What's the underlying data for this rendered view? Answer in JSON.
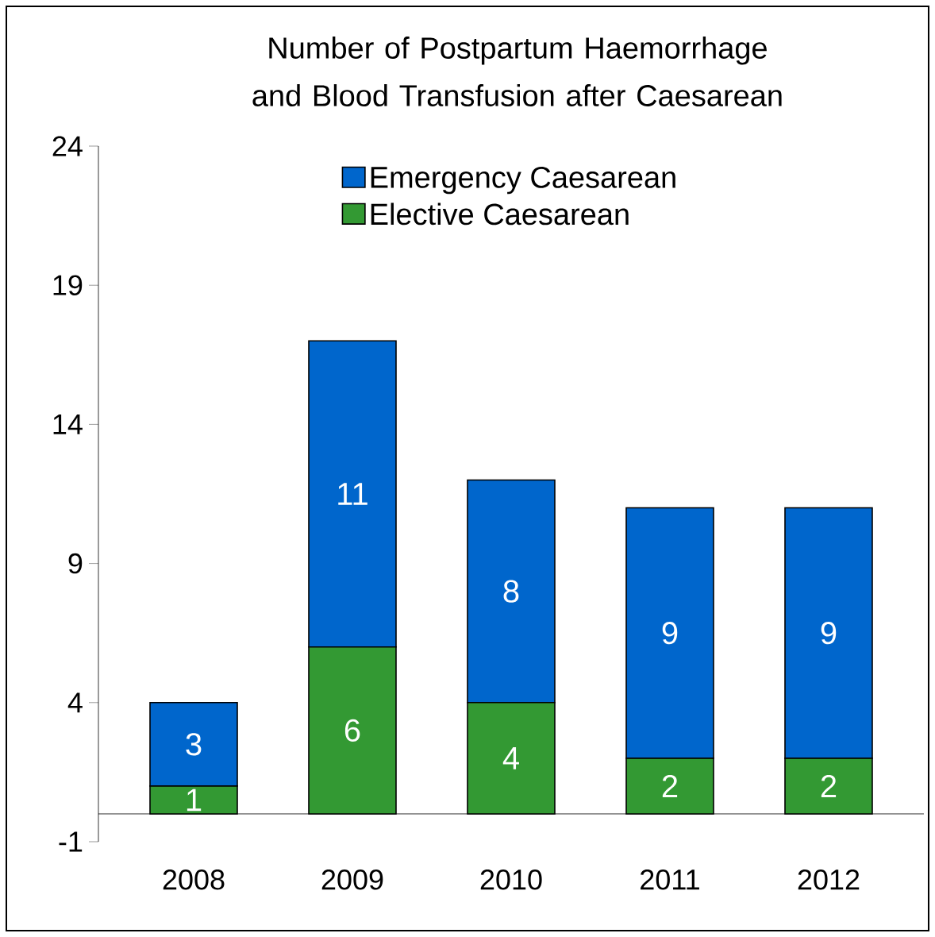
{
  "chart_data": {
    "type": "bar",
    "title": "Number of Postpartum Haemorrhage and Blood Transfusion after Caesarean",
    "categories": [
      "2008",
      "2009",
      "2010",
      "2011",
      "2012"
    ],
    "series": [
      {
        "name": "Elective Caesarean",
        "color": "#339933",
        "values": [
          1,
          6,
          4,
          2,
          2
        ]
      },
      {
        "name": "Emergency Caesarean",
        "color": "#0066cc",
        "values": [
          3,
          11,
          8,
          9,
          9
        ]
      }
    ],
    "stacked": true,
    "data_labels": true,
    "legend": "top",
    "ylim": [
      -1,
      24
    ],
    "yticks": [
      -1,
      4,
      9,
      14,
      19,
      24
    ]
  }
}
